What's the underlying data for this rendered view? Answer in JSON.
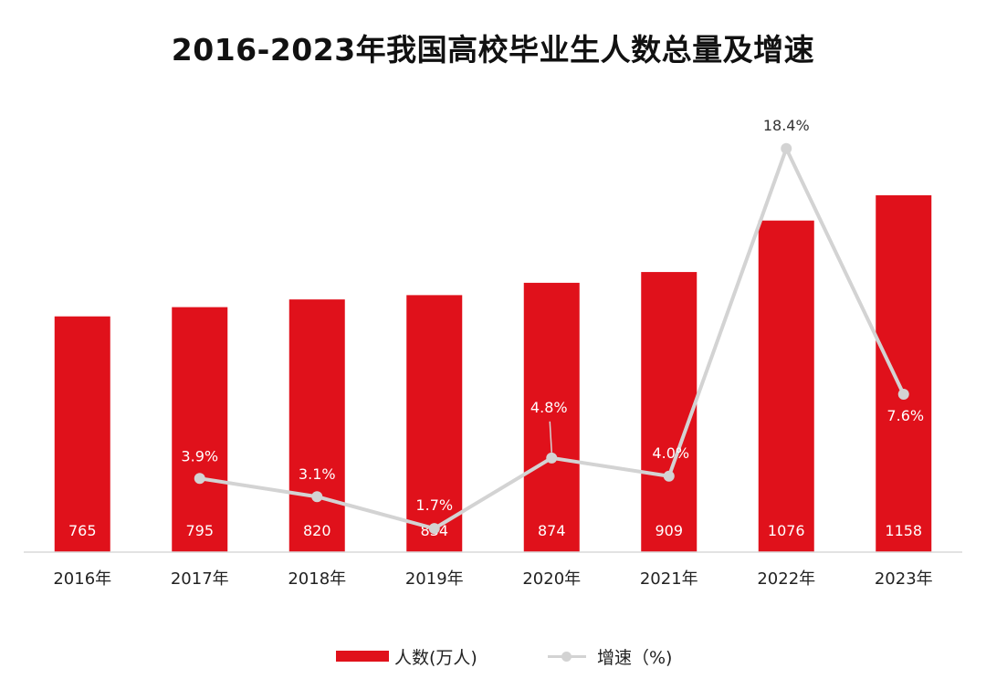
{
  "chart_data": {
    "type": "bar",
    "title": "2016-2023年我国高校毕业生人数总量及增速",
    "categories": [
      "2016年",
      "2017年",
      "2018年",
      "2019年",
      "2020年",
      "2021年",
      "2022年",
      "2023年"
    ],
    "series": [
      {
        "name": "人数(万人)",
        "type": "bar",
        "color": "#e0111b",
        "values": [
          765,
          795,
          820,
          834,
          874,
          909,
          1076,
          1158
        ],
        "labels": [
          "765",
          "795",
          "820",
          "834",
          "874",
          "909",
          "1076",
          "1158"
        ]
      },
      {
        "name": "增速（%)",
        "type": "line",
        "color": "#d3d3d3",
        "values": [
          null,
          3.9,
          3.1,
          1.7,
          4.8,
          4.0,
          18.4,
          7.6
        ],
        "labels": [
          "",
          "3.9%",
          "3.1%",
          "1.7%",
          "4.8%",
          "4.0%",
          "18.4%",
          "7.6%"
        ]
      }
    ],
    "legend_position": "bottom",
    "grid": false
  }
}
